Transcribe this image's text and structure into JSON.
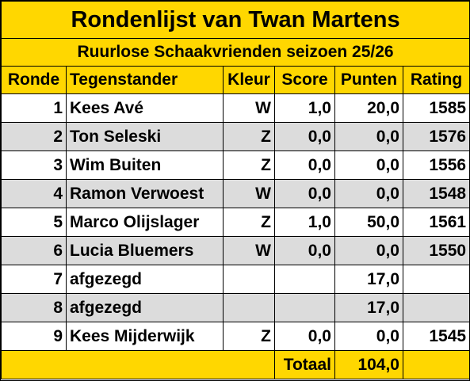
{
  "title": "Rondenlijst van Twan Martens",
  "subtitle": "Ruurlose Schaakvrienden seizoen 25/26",
  "headers": {
    "ronde": "Ronde",
    "tegenstander": "Tegenstander",
    "kleur": "Kleur",
    "score": "Score",
    "punten": "Punten",
    "rating": "Rating"
  },
  "rows": [
    {
      "ronde": "1",
      "tegenstander": "Kees Avé",
      "kleur": "W",
      "score": "1,0",
      "punten": "20,0",
      "rating": "1585"
    },
    {
      "ronde": "2",
      "tegenstander": "Ton Seleski",
      "kleur": "Z",
      "score": "0,0",
      "punten": "0,0",
      "rating": "1576"
    },
    {
      "ronde": "3",
      "tegenstander": "Wim Buiten",
      "kleur": "Z",
      "score": "0,0",
      "punten": "0,0",
      "rating": "1556"
    },
    {
      "ronde": "4",
      "tegenstander": "Ramon Verwoest",
      "kleur": "W",
      "score": "0,0",
      "punten": "0,0",
      "rating": "1548"
    },
    {
      "ronde": "5",
      "tegenstander": "Marco Olijslager",
      "kleur": "Z",
      "score": "1,0",
      "punten": "50,0",
      "rating": "1561"
    },
    {
      "ronde": "6",
      "tegenstander": "Lucia Bluemers",
      "kleur": "W",
      "score": "0,0",
      "punten": "0,0",
      "rating": "1550"
    },
    {
      "ronde": "7",
      "tegenstander": "afgezegd",
      "kleur": "",
      "score": "",
      "punten": "17,0",
      "rating": ""
    },
    {
      "ronde": "8",
      "tegenstander": "afgezegd",
      "kleur": "",
      "score": "",
      "punten": "17,0",
      "rating": ""
    },
    {
      "ronde": "9",
      "tegenstander": "Kees Mijderwijk",
      "kleur": "Z",
      "score": "0,0",
      "punten": "0,0",
      "rating": "1545"
    }
  ],
  "total": {
    "label": "Totaal",
    "value": "104,0"
  },
  "colors": {
    "header_bg": "#ffd700",
    "alt_row_bg": "#dcdcdc"
  }
}
